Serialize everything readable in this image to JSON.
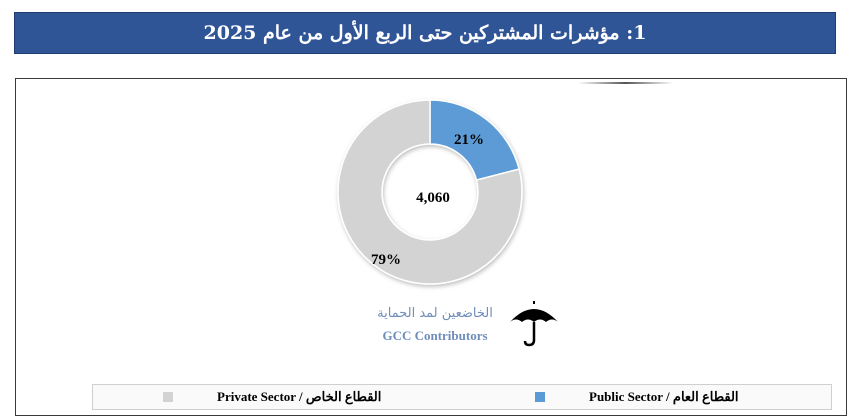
{
  "title": "1: مؤشرات المشتركين حتى الربع الأول من عام 2025",
  "chart_data": {
    "type": "pie",
    "donut": true,
    "center_value": "4,060",
    "series": [
      {
        "name": "Public Sector / القطاع العام",
        "value": 21,
        "label": "21%",
        "color": "#5b9bd5"
      },
      {
        "name": "Private Sector / القطاع الخاص",
        "value": 79,
        "label": "79%",
        "color": "#d3d3d3"
      }
    ],
    "caption_ar": "الخاضعين لمد الحماية",
    "caption_en": "GCC Contributors",
    "legend_placement": "bottom"
  },
  "legend": {
    "private_label": "Private Sector / القطاع الخاص",
    "public_label": "Public Sector / القطاع العام",
    "private_color": "#d3d3d3",
    "public_color": "#5b9bd5"
  },
  "icons": {
    "umbrella": "umbrella-icon"
  }
}
